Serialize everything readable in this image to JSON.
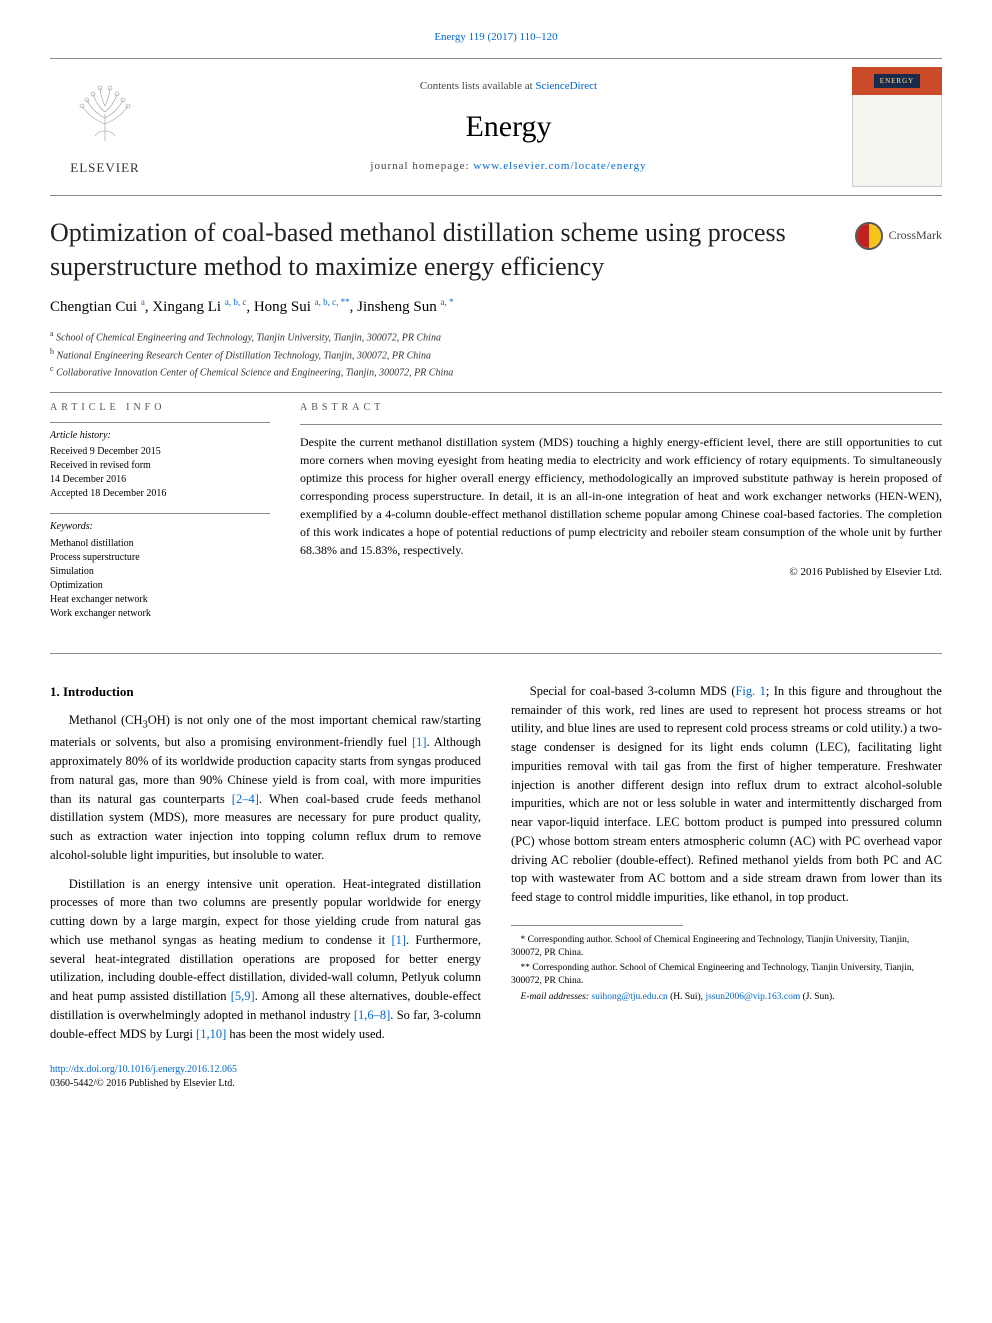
{
  "citation_line": "Energy 119 (2017) 110–120",
  "citation_url": "#",
  "header": {
    "contents_prefix": "Contents lists available at ",
    "contents_link_text": "ScienceDirect",
    "journal_name": "Energy",
    "homepage_prefix": "journal homepage: ",
    "homepage_link_text": "www.elsevier.com/locate/energy",
    "elsevier_label": "ELSEVIER",
    "cover_mini_title": "ENERGY"
  },
  "crossmark_label": "CrossMark",
  "title": "Optimization of coal-based methanol distillation scheme using process superstructure method to maximize energy efficiency",
  "authors_html": "Chengtian Cui <sup><a href='#'>a</a></sup>, Xingang Li <sup><a href='#'>a</a>, <a href='#'>b</a>, <a href='#'>c</a></sup>, Hong Sui <sup><a href='#'>a</a>, <a href='#'>b</a>, <a href='#'>c</a>, <a href='#'>**</a></sup>, Jinsheng Sun <sup><a href='#'>a</a>, <a href='#'>*</a></sup>",
  "affiliations": [
    {
      "sup": "a",
      "text": "School of Chemical Engineering and Technology, Tianjin University, Tianjin, 300072, PR China"
    },
    {
      "sup": "b",
      "text": "National Engineering Research Center of Distillation Technology, Tianjin, 300072, PR China"
    },
    {
      "sup": "c",
      "text": "Collaborative Innovation Center of Chemical Science and Engineering, Tianjin, 300072, PR China"
    }
  ],
  "article_info": {
    "header": "ARTICLE INFO",
    "history_label": "Article history:",
    "history_lines": [
      "Received 9 December 2015",
      "Received in revised form",
      "14 December 2016",
      "Accepted 18 December 2016"
    ],
    "keywords_label": "Keywords:",
    "keywords": [
      "Methanol distillation",
      "Process superstructure",
      "Simulation",
      "Optimization",
      "Heat exchanger network",
      "Work exchanger network"
    ]
  },
  "abstract": {
    "header": "ABSTRACT",
    "text": "Despite the current methanol distillation system (MDS) touching a highly energy-efficient level, there are still opportunities to cut more corners when moving eyesight from heating media to electricity and work efficiency of rotary equipments. To simultaneously optimize this process for higher overall energy efficiency, methodologically an improved substitute pathway is herein proposed of corresponding process superstructure. In detail, it is an all-in-one integration of heat and work exchanger networks (HEN-WEN), exemplified by a 4-column double-effect methanol distillation scheme popular among Chinese coal-based factories. The completion of this work indicates a hope of potential reductions of pump electricity and reboiler steam consumption of the whole unit by further 68.38% and 15.83%, respectively.",
    "copyright": "© 2016 Published by Elsevier Ltd."
  },
  "intro": {
    "heading": "1. Introduction",
    "p1_pre": "Methanol (CH",
    "p1_sub": "3",
    "p1_post_a": "OH) is not only one of the most important chemical raw/starting materials or solvents, but also a promising environment-friendly fuel ",
    "p1_ref1": "[1]",
    "p1_post_b": ". Although approximately 80% of its worldwide production capacity starts from syngas produced from natural gas, more than 90% Chinese yield is from coal, with more impurities than its natural gas counterparts ",
    "p1_ref2": "[2–4]",
    "p1_post_c": ". When coal-based crude feeds methanol distillation system (MDS), more measures are necessary for pure product quality, such as extraction water injection into topping column reflux drum to remove alcohol-soluble light impurities, but insoluble to water.",
    "p2_a": "Distillation is an energy intensive unit operation. Heat-integrated distillation processes of more than two columns are presently popular worldwide for energy cutting down by a large margin, expect for those yielding crude from natural gas which use methanol syngas as heating medium to condense it ",
    "p2_ref1": "[1]",
    "p2_b": ". Further",
    "p2_c": "more, several heat-integrated distillation operations are proposed for better energy utilization, including double-effect distillation, divided-wall column, Petlyuk column and heat pump assisted distillation ",
    "p2_ref2": "[5,9]",
    "p2_d": ". Among all these alternatives, double-effect distillation is overwhelmingly adopted in methanol industry ",
    "p2_ref3": "[1,6–8]",
    "p2_e": ". So far, 3-column double-effect MDS by Lurgi ",
    "p2_ref4": "[1,10]",
    "p2_f": " has been the most widely used.",
    "p3_a": "Special for coal-based 3-column MDS (",
    "p3_fig": "Fig. 1",
    "p3_b": "; In this figure and throughout the remainder of this work, red lines are used to represent hot process streams or hot utility, and blue lines are used to represent cold process streams or cold utility.) a two-stage condenser is designed for its light ends column (LEC), facilitating light impurities removal with tail gas from the first of higher temperature. Freshwater injection is another different design into reflux drum to extract alcohol-soluble impurities, which are not or less soluble in water and intermittently discharged from near vapor-liquid interface. LEC bottom product is pumped into pressured column (PC) whose bottom stream enters atmospheric column (AC) with PC overhead vapor driving AC rebolier (double-effect). Refined methanol yields from both PC and AC top with wastewater from AC bottom and a side stream drawn from lower than its feed stage to control middle impurities, like ethanol, in top product."
  },
  "footnotes": {
    "fn1": "* Corresponding author. School of Chemical Engineering and Technology, Tianjin University, Tianjin, 300072, PR China.",
    "fn2": "** Corresponding author. School of Chemical Engineering and Technology, Tianjin University, Tianjin, 300072, PR China.",
    "email_label": "E-mail addresses: ",
    "email1": "suihong@tju.edu.cn",
    "email1_name": " (H. Sui), ",
    "email2": "jssun2006@vip.163.com",
    "email2_name": " (J. Sun)."
  },
  "doi": {
    "url_text": "http://dx.doi.org/10.1016/j.energy.2016.12.065",
    "issn_line": "0360-5442/© 2016 Published by Elsevier Ltd."
  },
  "colors": {
    "link": "#0066cc",
    "text": "#000000",
    "cover_orange": "#c94b2a",
    "cover_navy": "#1a2a4a",
    "cover_gold": "#ffe89a",
    "crossmark_red": "#c02020",
    "crossmark_yellow": "#f5c518"
  }
}
